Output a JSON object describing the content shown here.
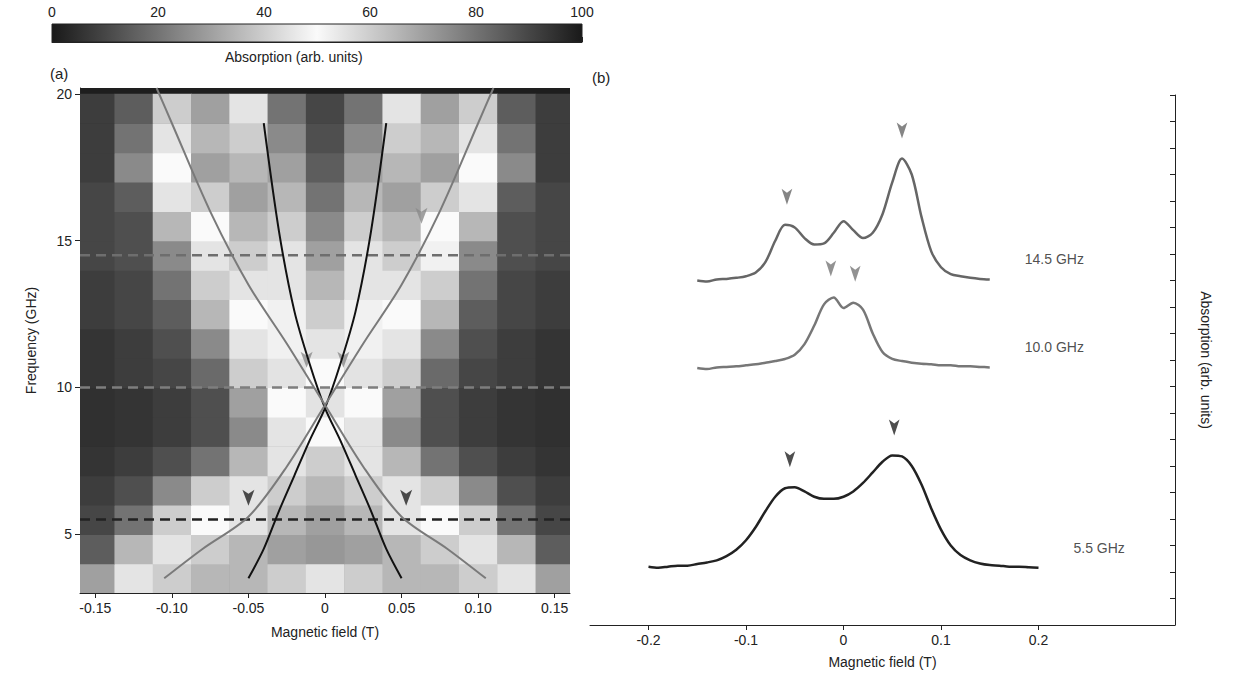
{
  "chart_data": [
    {
      "type": "heatmap",
      "title": "(a)",
      "x_label": "Magnetic field (T)",
      "y_label": "Frequency (GHz)",
      "xlim": [
        -0.16,
        0.16
      ],
      "xticks": [
        -0.15,
        {
          "value": -0.1,
          "label": "-0.10"
        },
        -0.05,
        0,
        0.05,
        {
          "value": 0.1,
          "label": "0.10"
        },
        0.15
      ],
      "ylim": [
        3,
        20.2
      ],
      "yticks": [
        5,
        10,
        15,
        20
      ],
      "grid": false,
      "heatmap": {
        "x": [
          -0.15,
          -0.125,
          -0.1,
          -0.075,
          -0.05,
          -0.025,
          0,
          0.025,
          0.05,
          0.075,
          0.1,
          0.125,
          0.15
        ],
        "y": [
          3.5,
          4.5,
          5.5,
          6.5,
          7.5,
          8.5,
          9.5,
          10.5,
          11.5,
          12.5,
          13.5,
          14.5,
          15.5,
          16.5,
          17.5,
          18.5,
          19.5
        ],
        "values": [
          [
            30,
            45,
            40,
            35,
            35,
            40,
            45,
            40,
            35,
            35,
            40,
            45,
            30
          ],
          [
            15,
            35,
            45,
            40,
            35,
            30,
            28,
            30,
            35,
            40,
            45,
            35,
            15
          ],
          [
            10,
            20,
            40,
            50,
            45,
            35,
            30,
            35,
            45,
            50,
            40,
            20,
            10
          ],
          [
            8,
            12,
            25,
            40,
            45,
            40,
            35,
            40,
            45,
            40,
            25,
            12,
            8
          ],
          [
            6,
            8,
            12,
            20,
            35,
            45,
            40,
            45,
            35,
            20,
            12,
            8,
            6
          ],
          [
            5,
            6,
            8,
            12,
            25,
            45,
            50,
            45,
            25,
            12,
            8,
            6,
            5
          ],
          [
            5,
            6,
            8,
            12,
            30,
            50,
            55,
            50,
            30,
            12,
            8,
            6,
            5
          ],
          [
            6,
            8,
            10,
            18,
            40,
            55,
            50,
            55,
            40,
            18,
            10,
            8,
            6
          ],
          [
            6,
            8,
            12,
            25,
            45,
            52,
            45,
            52,
            45,
            25,
            12,
            8,
            6
          ],
          [
            8,
            10,
            15,
            35,
            50,
            48,
            40,
            48,
            50,
            35,
            15,
            10,
            8
          ],
          [
            8,
            10,
            20,
            40,
            45,
            45,
            35,
            45,
            45,
            40,
            20,
            10,
            8
          ],
          [
            10,
            12,
            25,
            45,
            40,
            45,
            30,
            45,
            40,
            48,
            25,
            12,
            10
          ],
          [
            10,
            12,
            35,
            50,
            35,
            40,
            25,
            40,
            35,
            50,
            35,
            12,
            10
          ],
          [
            10,
            15,
            45,
            40,
            30,
            35,
            20,
            35,
            30,
            40,
            45,
            15,
            10
          ],
          [
            8,
            25,
            50,
            30,
            35,
            30,
            15,
            30,
            35,
            30,
            50,
            25,
            8
          ],
          [
            8,
            20,
            45,
            35,
            40,
            25,
            12,
            25,
            40,
            35,
            45,
            20,
            8
          ],
          [
            8,
            15,
            40,
            30,
            45,
            20,
            10,
            20,
            45,
            30,
            40,
            15,
            8
          ]
        ]
      },
      "colorbar": {
        "label": "Absorption (arb. units)",
        "range": [
          0,
          100
        ],
        "ticks": [
          0,
          20,
          40,
          60,
          80,
          100
        ]
      },
      "series": [
        {
          "type": "line",
          "color": "#111111",
          "x": [
            -0.05,
            -0.04,
            -0.03,
            -0.02,
            -0.01,
            0,
            0.01,
            0.02,
            0.03,
            0.04
          ],
          "values": [
            3.5,
            4.5,
            5.8,
            7.0,
            8.2,
            9.3,
            10.8,
            12.6,
            15.3,
            19.0
          ]
        },
        {
          "type": "line",
          "color": "#111111",
          "x": [
            0.05,
            0.04,
            0.03,
            0.02,
            0.01,
            0,
            -0.01,
            -0.02,
            -0.03,
            -0.04
          ],
          "values": [
            3.5,
            4.5,
            5.8,
            7.0,
            8.2,
            9.3,
            10.8,
            12.6,
            15.3,
            19.0
          ]
        },
        {
          "type": "line",
          "color": "#7a7a7a",
          "x": [
            -0.105,
            -0.08,
            -0.05,
            -0.025,
            0,
            0.025,
            0.05,
            0.075,
            0.1,
            0.11
          ],
          "values": [
            3.5,
            4.5,
            5.6,
            7.3,
            9.4,
            11.5,
            13.5,
            16.0,
            19.0,
            20.2
          ]
        },
        {
          "type": "line",
          "color": "#7a7a7a",
          "x": [
            0.105,
            0.08,
            0.05,
            0.025,
            0,
            -0.025,
            -0.05,
            -0.075,
            -0.1,
            -0.11
          ],
          "values": [
            3.5,
            4.5,
            5.6,
            7.3,
            9.4,
            11.5,
            13.5,
            16.0,
            19.0,
            20.2
          ]
        }
      ],
      "hlines": [
        {
          "value": 14.5,
          "color": "#6e6e6e",
          "line_style": "dashed"
        },
        {
          "value": 10.0,
          "color": "#7e7e7e",
          "line_style": "dashed"
        },
        {
          "value": 5.5,
          "color": "#222222",
          "line_style": "dashed"
        }
      ],
      "arrows": [
        {
          "x": -0.05,
          "y": 5.7,
          "color": "#222222"
        },
        {
          "x": 0.053,
          "y": 5.7,
          "color": "#222222"
        },
        {
          "x": -0.012,
          "y": 10.4,
          "color": "#8a8a8a"
        },
        {
          "x": 0.012,
          "y": 10.4,
          "color": "#8a8a8a"
        },
        {
          "x": 0.063,
          "y": 15.3,
          "color": "#8a8a8a"
        }
      ]
    },
    {
      "type": "line",
      "title": "(b)",
      "x_label": "Magnetic field (T)",
      "y_label": "Absorption (arb. units)",
      "xlim": [
        -0.26,
        0.34
      ],
      "xticks": [
        -0.2,
        -0.1,
        0,
        0.1,
        0.2
      ],
      "ylim": [
        0,
        10
      ],
      "yticks": [
        0,
        0.5,
        1,
        1.5,
        2,
        2.5,
        3,
        3.5,
        4,
        4.5,
        5,
        5.5,
        6,
        6.5,
        7,
        7.5,
        8,
        8.5,
        9,
        9.5,
        10
      ],
      "tick_labels": "x",
      "grid": false,
      "series": [
        {
          "label": "5.5 GHz",
          "color": "#222222",
          "x": [
            -0.2,
            -0.19,
            -0.18,
            -0.17,
            -0.16,
            -0.15,
            -0.14,
            -0.13,
            -0.12,
            -0.11,
            -0.1,
            -0.09,
            -0.08,
            -0.07,
            -0.06,
            -0.05,
            -0.04,
            -0.03,
            -0.02,
            -0.01,
            0,
            0.01,
            0.02,
            0.03,
            0.04,
            0.05,
            0.06,
            0.07,
            0.08,
            0.09,
            0.1,
            0.11,
            0.12,
            0.13,
            0.14,
            0.15,
            0.16,
            0.17,
            0.18,
            0.19,
            0.2
          ],
          "values": [
            1.1,
            1.08,
            1.1,
            1.12,
            1.12,
            1.15,
            1.18,
            1.22,
            1.3,
            1.42,
            1.6,
            1.85,
            2.15,
            2.42,
            2.58,
            2.6,
            2.52,
            2.42,
            2.38,
            2.38,
            2.42,
            2.52,
            2.68,
            2.88,
            3.08,
            3.2,
            3.18,
            3.0,
            2.65,
            2.2,
            1.8,
            1.5,
            1.32,
            1.22,
            1.16,
            1.13,
            1.12,
            1.1,
            1.1,
            1.09,
            1.08
          ],
          "arrows": [
            [
              -0.055,
              2.6
            ],
            [
              0.052,
              3.2
            ]
          ]
        },
        {
          "label": "10.0 GHz",
          "color": "#777777",
          "x": [
            -0.15,
            -0.14,
            -0.13,
            -0.12,
            -0.11,
            -0.1,
            -0.09,
            -0.08,
            -0.07,
            -0.06,
            -0.05,
            -0.04,
            -0.03,
            -0.02,
            -0.01,
            0,
            0.01,
            0.02,
            0.03,
            0.04,
            0.05,
            0.06,
            0.07,
            0.08,
            0.09,
            0.1,
            0.11,
            0.12,
            0.13,
            0.14,
            0.15
          ],
          "values": [
            4.85,
            4.83,
            4.86,
            4.87,
            4.88,
            4.9,
            4.92,
            4.95,
            4.98,
            5.02,
            5.1,
            5.3,
            5.65,
            6.05,
            6.18,
            5.98,
            6.08,
            5.95,
            5.5,
            5.15,
            5.02,
            4.98,
            4.95,
            4.93,
            4.92,
            4.9,
            4.9,
            4.88,
            4.88,
            4.87,
            4.86
          ],
          "arrows": [
            [
              -0.013,
              6.2
            ],
            [
              0.012,
              6.1
            ]
          ]
        },
        {
          "label": "14.5 GHz",
          "color": "#666666",
          "x": [
            -0.15,
            -0.14,
            -0.13,
            -0.12,
            -0.11,
            -0.1,
            -0.09,
            -0.08,
            -0.07,
            -0.06,
            -0.05,
            -0.04,
            -0.03,
            -0.02,
            -0.01,
            0,
            0.01,
            0.02,
            0.03,
            0.04,
            0.05,
            0.06,
            0.07,
            0.08,
            0.09,
            0.1,
            0.11,
            0.12,
            0.13,
            0.14,
            0.15
          ],
          "values": [
            6.5,
            6.48,
            6.52,
            6.53,
            6.55,
            6.58,
            6.65,
            6.85,
            7.25,
            7.55,
            7.5,
            7.3,
            7.18,
            7.2,
            7.4,
            7.62,
            7.45,
            7.3,
            7.4,
            7.75,
            8.35,
            8.8,
            8.5,
            7.7,
            7.05,
            6.75,
            6.62,
            6.58,
            6.55,
            6.53,
            6.52
          ],
          "arrows": [
            [
              -0.058,
              7.55
            ],
            [
              0.06,
              8.8
            ]
          ]
        }
      ]
    }
  ]
}
